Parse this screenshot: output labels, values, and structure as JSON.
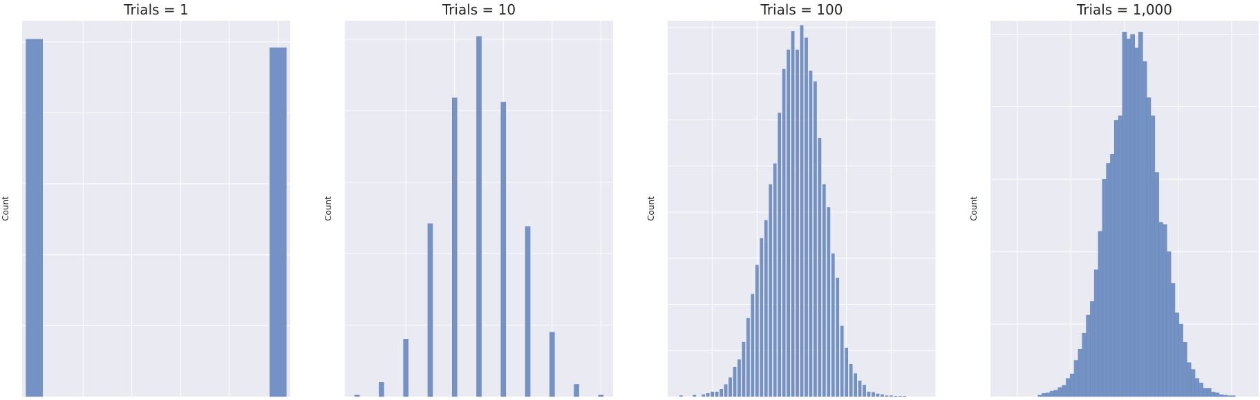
{
  "figure": {
    "background": "#ffffff"
  },
  "style": {
    "axes_facecolor": "#eaeaf2",
    "grid_color": "#ffffff",
    "bar_color": "#7592c4",
    "bar_edge": "#6a87bb"
  },
  "chart_data": [
    {
      "type": "bar",
      "title": "Trials = 1",
      "xlabel": "",
      "ylabel": "Count",
      "xlim": [
        -0.05,
        1.05
      ],
      "ylim": [
        0,
        5300
      ],
      "grid": true,
      "x_grid": [
        0.2,
        0.4,
        0.6,
        0.8,
        1.0
      ],
      "y_grid": [
        1000,
        2000,
        3000,
        4000,
        5000
      ],
      "bar_width": 0.068,
      "x": [
        0,
        1
      ],
      "values": [
        5040,
        4920
      ]
    },
    {
      "type": "bar",
      "title": "Trials = 10",
      "xlabel": "",
      "ylabel": "Count",
      "xlim": [
        -0.05,
        1.05
      ],
      "ylim": [
        0,
        2630
      ],
      "grid": true,
      "x_grid": [
        0.2,
        0.4,
        0.6,
        0.8,
        1.0
      ],
      "y_grid": [
        500,
        1000,
        1500,
        2000,
        2500
      ],
      "bar_width": 0.02,
      "x": [
        0.0,
        0.1,
        0.2,
        0.3,
        0.4,
        0.5,
        0.6,
        0.7,
        0.8,
        0.9,
        1.0
      ],
      "values": [
        10,
        100,
        400,
        1210,
        2090,
        2520,
        2060,
        1190,
        450,
        85,
        10
      ]
    },
    {
      "type": "bar",
      "title": "Trials = 100",
      "xlabel": "",
      "ylabel": "Count",
      "xlim": [
        0.2,
        0.8
      ],
      "ylim": [
        0,
        815
      ],
      "grid": true,
      "x_grid": [
        0.3,
        0.4,
        0.5,
        0.6,
        0.7,
        0.8
      ],
      "y_grid": [
        100,
        200,
        300,
        400,
        500,
        600,
        700,
        800
      ],
      "bar_width": 0.0065,
      "x": [
        0.23,
        0.26,
        0.28,
        0.29,
        0.3,
        0.31,
        0.32,
        0.33,
        0.34,
        0.35,
        0.36,
        0.37,
        0.38,
        0.39,
        0.4,
        0.41,
        0.42,
        0.43,
        0.44,
        0.45,
        0.46,
        0.47,
        0.48,
        0.49,
        0.5,
        0.51,
        0.52,
        0.53,
        0.54,
        0.55,
        0.56,
        0.57,
        0.58,
        0.59,
        0.6,
        0.61,
        0.62,
        0.63,
        0.64,
        0.65,
        0.66,
        0.67,
        0.68,
        0.69,
        0.7,
        0.71,
        0.72,
        0.73
      ],
      "values": [
        2,
        3,
        4,
        7,
        10,
        10,
        16,
        26,
        41,
        64,
        80,
        118,
        170,
        222,
        285,
        343,
        382,
        460,
        505,
        615,
        710,
        752,
        792,
        752,
        805,
        778,
        706,
        683,
        560,
        460,
        410,
        310,
        257,
        153,
        105,
        70,
        50,
        34,
        25,
        10,
        9,
        6,
        4,
        2,
        2,
        1,
        1,
        1
      ]
    },
    {
      "type": "bar",
      "title": "Trials = 1,000",
      "xlabel": "",
      "ylabel": "Count",
      "xlim": [
        0.4,
        0.6
      ],
      "ylim": [
        0,
        830
      ],
      "grid": true,
      "x_grid": [
        0.42,
        0.46,
        0.5,
        0.54,
        0.58
      ],
      "y_grid": [
        160,
        320,
        480,
        640,
        800
      ],
      "bar_width": 0.0032,
      "x": [
        0.437,
        0.44,
        0.443,
        0.446,
        0.449,
        0.452,
        0.455,
        0.458,
        0.461,
        0.464,
        0.467,
        0.47,
        0.473,
        0.476,
        0.479,
        0.482,
        0.485,
        0.488,
        0.491,
        0.494,
        0.497,
        0.5,
        0.503,
        0.506,
        0.509,
        0.512,
        0.515,
        0.518,
        0.521,
        0.524,
        0.527,
        0.53,
        0.533,
        0.536,
        0.539,
        0.542,
        0.545,
        0.548,
        0.551,
        0.554,
        0.557,
        0.56,
        0.563,
        0.566,
        0.569,
        0.572,
        0.575,
        0.578,
        0.581
      ],
      "values": [
        3,
        7,
        8,
        12,
        14,
        20,
        25,
        40,
        50,
        80,
        105,
        140,
        180,
        210,
        280,
        365,
        480,
        515,
        535,
        610,
        620,
        805,
        790,
        800,
        770,
        805,
        740,
        660,
        620,
        495,
        385,
        380,
        320,
        250,
        185,
        160,
        120,
        75,
        60,
        40,
        30,
        18,
        18,
        10,
        8,
        4,
        3,
        2,
        2
      ]
    }
  ]
}
